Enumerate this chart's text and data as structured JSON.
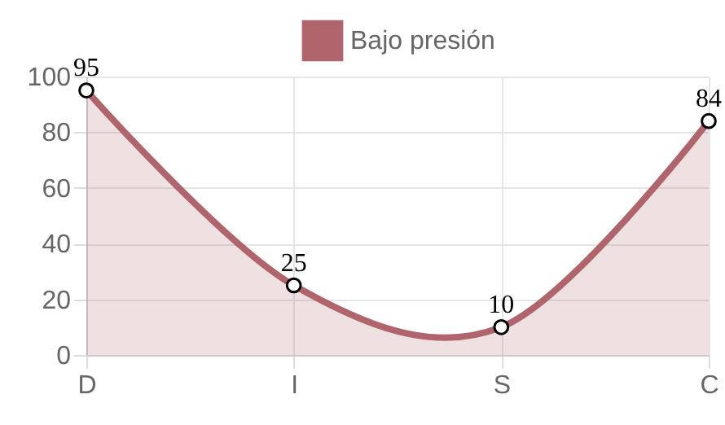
{
  "chart_data": {
    "type": "area",
    "categories": [
      "D",
      "I",
      "S",
      "C"
    ],
    "series": [
      {
        "name": "Bajo presión",
        "color": "#b0646c",
        "values": [
          95,
          25,
          10,
          84
        ]
      }
    ],
    "ylim": [
      0,
      100
    ],
    "yticks": [
      0,
      20,
      40,
      60,
      80,
      100
    ],
    "grid": true,
    "legend": "top",
    "marker": "circle",
    "data_labels": true
  }
}
